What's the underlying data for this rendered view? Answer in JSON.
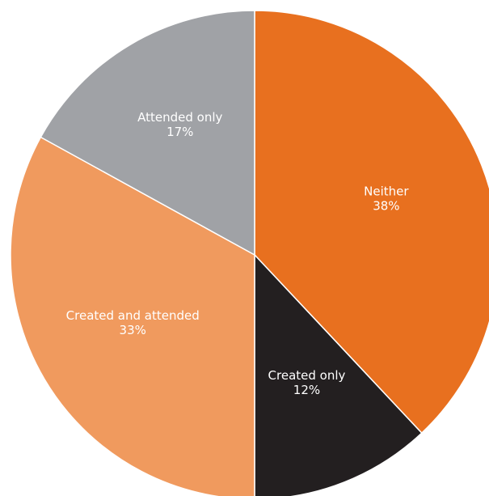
{
  "chart_data": {
    "type": "pie",
    "start_angle_deg": 0,
    "direction": "clockwise",
    "slices": [
      {
        "label": "Neither",
        "percent_label": "38%",
        "value": 38,
        "color": "#E8701F"
      },
      {
        "label": "Created only",
        "percent_label": "12%",
        "value": 12,
        "color": "#231F20"
      },
      {
        "label": "Created and attended",
        "percent_label": "33%",
        "value": 33,
        "color": "#F09A5E"
      },
      {
        "label": "Attended only",
        "percent_label": "17%",
        "value": 17,
        "color": "#A0A2A6"
      }
    ]
  }
}
